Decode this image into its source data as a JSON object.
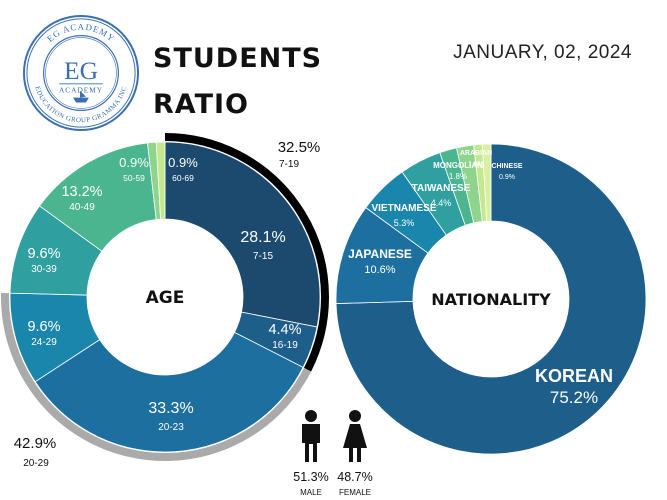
{
  "header": {
    "title_line1": "STUDENTS",
    "title_line2": "RATIO",
    "date": "JANUARY, 02, 2024"
  },
  "logo": {
    "ring_top_text": "EG ACADEMY",
    "ring_bottom_text": "EDUCATION GROUP GRAMMA INC",
    "monogram": "EG",
    "sub": "ACADEMY"
  },
  "gender": {
    "male": {
      "label": "MALE",
      "value": "51.3%"
    },
    "female": {
      "label": "FEMALE",
      "value": "48.7%"
    }
  },
  "chart_data": [
    {
      "type": "pie",
      "center_label": "AGE",
      "slices": [
        {
          "label": "7-15",
          "value": 28.1,
          "text": "28.1%",
          "color": "#1c4a6e"
        },
        {
          "label": "16-19",
          "value": 4.4,
          "text": "4.4%",
          "color": "#1e5e8a"
        },
        {
          "label": "20-23",
          "value": 33.3,
          "text": "33.3%",
          "color": "#1d6fa0"
        },
        {
          "label": "24-29",
          "value": 9.6,
          "text": "9.6%",
          "color": "#1a86ac"
        },
        {
          "label": "30-39",
          "value": 9.6,
          "text": "9.6%",
          "color": "#2f9fa0"
        },
        {
          "label": "40-49",
          "value": 13.2,
          "text": "13.2%",
          "color": "#4bb58f"
        },
        {
          "label": "50-59",
          "value": 0.9,
          "text": "0.9%",
          "color": "#8fd48d"
        },
        {
          "label": "60-69",
          "value": 0.9,
          "text": "0.9%",
          "color": "#c4e88e"
        }
      ],
      "groups": [
        {
          "label": "7-19",
          "text": "32.5%",
          "color": "#000000"
        },
        {
          "label": "20-29",
          "text": "42.9%",
          "color": "#aaaaaa"
        }
      ]
    },
    {
      "type": "pie",
      "center_label": "NATIONALITY",
      "slices": [
        {
          "label": "KOREAN",
          "value": 75.2,
          "text": "75.2%",
          "color": "#1e5e8a"
        },
        {
          "label": "JAPANESE",
          "value": 10.6,
          "text": "10.6%",
          "color": "#1d6fa0"
        },
        {
          "label": "VIETNAMESE",
          "value": 5.3,
          "text": "5.3%",
          "color": "#1a86ac"
        },
        {
          "label": "TAIWANESE",
          "value": 4.4,
          "text": "4.4%",
          "color": "#2f9fa0"
        },
        {
          "label": "MONGOLIAN",
          "value": 1.8,
          "text": "1.8%",
          "color": "#4bb58f"
        },
        {
          "label": "ARABIAN",
          "value": 1.8,
          "text": "1.8%",
          "color": "#8fd48d"
        },
        {
          "label": "",
          "value": 0.9,
          "text": "",
          "color": "#c4e88e"
        },
        {
          "label": "CHINESE",
          "value": 0.9,
          "text": "0.9%",
          "color": "#d9f0a3"
        }
      ]
    }
  ]
}
